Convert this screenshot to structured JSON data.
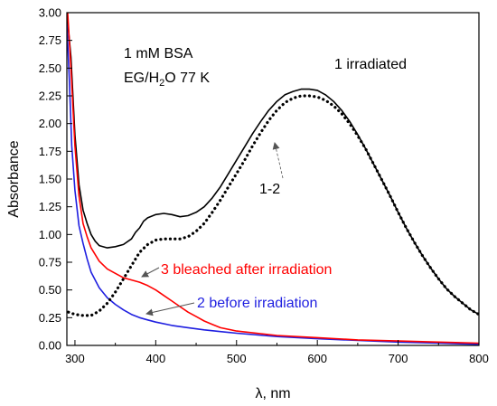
{
  "chart_data": {
    "type": "line",
    "xlabel_symbol": "λ",
    "xlabel_unit": ", nm",
    "ylabel": "Absorbance",
    "xlim": [
      290,
      800
    ],
    "ylim": [
      0,
      3.0
    ],
    "x_ticks": [
      300,
      400,
      500,
      600,
      700,
      800
    ],
    "y_ticks": [
      "0.00",
      "0.25",
      "0.50",
      "0.75",
      "1.00",
      "1.25",
      "1.50",
      "1.75",
      "2.00",
      "2.25",
      "2.50",
      "2.75",
      "3.00"
    ],
    "grid": false,
    "annotations": {
      "sample_line1": "1 mM BSA",
      "sample_line2_pre": "EG/H",
      "sample_line2_sub": "2",
      "sample_line2_post": "O 77 K",
      "curve1": "1 irradiated",
      "curve2": "2 before irradiation",
      "curve3": "3 bleached after irradiation",
      "diff": "1-2"
    },
    "series": [
      {
        "name": "1 irradiated",
        "color": "#000000",
        "style": "solid",
        "points": [
          [
            290,
            3.0
          ],
          [
            295,
            2.6
          ],
          [
            300,
            1.9
          ],
          [
            305,
            1.45
          ],
          [
            310,
            1.22
          ],
          [
            315,
            1.1
          ],
          [
            320,
            1.0
          ],
          [
            325,
            0.94
          ],
          [
            330,
            0.9
          ],
          [
            340,
            0.88
          ],
          [
            350,
            0.89
          ],
          [
            360,
            0.91
          ],
          [
            370,
            0.96
          ],
          [
            375,
            1.02
          ],
          [
            380,
            1.06
          ],
          [
            385,
            1.12
          ],
          [
            390,
            1.15
          ],
          [
            400,
            1.18
          ],
          [
            410,
            1.19
          ],
          [
            420,
            1.18
          ],
          [
            430,
            1.16
          ],
          [
            440,
            1.17
          ],
          [
            450,
            1.2
          ],
          [
            460,
            1.25
          ],
          [
            470,
            1.33
          ],
          [
            480,
            1.43
          ],
          [
            490,
            1.55
          ],
          [
            500,
            1.67
          ],
          [
            510,
            1.79
          ],
          [
            520,
            1.91
          ],
          [
            530,
            2.02
          ],
          [
            540,
            2.12
          ],
          [
            550,
            2.2
          ],
          [
            560,
            2.26
          ],
          [
            570,
            2.29
          ],
          [
            580,
            2.31
          ],
          [
            590,
            2.31
          ],
          [
            600,
            2.3
          ],
          [
            610,
            2.26
          ],
          [
            620,
            2.2
          ],
          [
            630,
            2.12
          ],
          [
            640,
            2.02
          ],
          [
            650,
            1.9
          ],
          [
            660,
            1.77
          ],
          [
            670,
            1.63
          ],
          [
            680,
            1.49
          ],
          [
            690,
            1.35
          ],
          [
            700,
            1.2
          ],
          [
            710,
            1.06
          ],
          [
            720,
            0.93
          ],
          [
            730,
            0.81
          ],
          [
            740,
            0.7
          ],
          [
            750,
            0.6
          ],
          [
            760,
            0.51
          ],
          [
            770,
            0.44
          ],
          [
            780,
            0.38
          ],
          [
            790,
            0.32
          ],
          [
            800,
            0.28
          ]
        ]
      },
      {
        "name": "2 before irradiation",
        "color": "#1f1fe0",
        "style": "solid",
        "points": [
          [
            290,
            2.9
          ],
          [
            293,
            2.4
          ],
          [
            296,
            1.8
          ],
          [
            300,
            1.4
          ],
          [
            305,
            1.08
          ],
          [
            310,
            0.92
          ],
          [
            315,
            0.78
          ],
          [
            320,
            0.66
          ],
          [
            330,
            0.52
          ],
          [
            340,
            0.43
          ],
          [
            350,
            0.37
          ],
          [
            360,
            0.32
          ],
          [
            370,
            0.28
          ],
          [
            380,
            0.25
          ],
          [
            390,
            0.23
          ],
          [
            400,
            0.21
          ],
          [
            420,
            0.18
          ],
          [
            440,
            0.16
          ],
          [
            460,
            0.14
          ],
          [
            480,
            0.125
          ],
          [
            500,
            0.11
          ],
          [
            550,
            0.08
          ],
          [
            600,
            0.06
          ],
          [
            650,
            0.045
          ],
          [
            700,
            0.03
          ],
          [
            750,
            0.02
          ],
          [
            800,
            0.01
          ]
        ]
      },
      {
        "name": "3 bleached after irradiation",
        "color": "#ff0000",
        "style": "solid",
        "points": [
          [
            291,
            3.0
          ],
          [
            295,
            2.5
          ],
          [
            300,
            1.8
          ],
          [
            305,
            1.35
          ],
          [
            310,
            1.1
          ],
          [
            315,
            0.98
          ],
          [
            320,
            0.88
          ],
          [
            330,
            0.76
          ],
          [
            340,
            0.69
          ],
          [
            350,
            0.65
          ],
          [
            360,
            0.61
          ],
          [
            370,
            0.59
          ],
          [
            380,
            0.57
          ],
          [
            390,
            0.54
          ],
          [
            400,
            0.5
          ],
          [
            410,
            0.45
          ],
          [
            420,
            0.4
          ],
          [
            430,
            0.35
          ],
          [
            440,
            0.3
          ],
          [
            450,
            0.26
          ],
          [
            460,
            0.22
          ],
          [
            470,
            0.19
          ],
          [
            480,
            0.16
          ],
          [
            500,
            0.13
          ],
          [
            550,
            0.09
          ],
          [
            600,
            0.07
          ],
          [
            650,
            0.05
          ],
          [
            700,
            0.04
          ],
          [
            750,
            0.03
          ],
          [
            800,
            0.02
          ]
        ]
      },
      {
        "name": "1-2",
        "color": "#000000",
        "style": "dotted",
        "points": [
          [
            292,
            0.3
          ],
          [
            300,
            0.28
          ],
          [
            310,
            0.27
          ],
          [
            320,
            0.27
          ],
          [
            330,
            0.31
          ],
          [
            340,
            0.38
          ],
          [
            350,
            0.48
          ],
          [
            360,
            0.6
          ],
          [
            370,
            0.72
          ],
          [
            380,
            0.84
          ],
          [
            390,
            0.91
          ],
          [
            400,
            0.95
          ],
          [
            410,
            0.96
          ],
          [
            420,
            0.96
          ],
          [
            430,
            0.96
          ],
          [
            440,
            0.98
          ],
          [
            450,
            1.03
          ],
          [
            460,
            1.1
          ],
          [
            470,
            1.2
          ],
          [
            480,
            1.31
          ],
          [
            490,
            1.43
          ],
          [
            500,
            1.55
          ],
          [
            510,
            1.67
          ],
          [
            520,
            1.8
          ],
          [
            530,
            1.92
          ],
          [
            540,
            2.03
          ],
          [
            550,
            2.12
          ],
          [
            560,
            2.19
          ],
          [
            570,
            2.23
          ],
          [
            580,
            2.25
          ],
          [
            590,
            2.25
          ],
          [
            600,
            2.24
          ],
          [
            610,
            2.21
          ],
          [
            620,
            2.16
          ],
          [
            630,
            2.09
          ],
          [
            640,
            2.0
          ],
          [
            650,
            1.89
          ],
          [
            660,
            1.77
          ],
          [
            670,
            1.63
          ],
          [
            680,
            1.49
          ],
          [
            690,
            1.35
          ],
          [
            700,
            1.2
          ],
          [
            710,
            1.06
          ],
          [
            720,
            0.93
          ],
          [
            730,
            0.81
          ],
          [
            740,
            0.7
          ],
          [
            750,
            0.6
          ],
          [
            760,
            0.51
          ],
          [
            770,
            0.44
          ],
          [
            780,
            0.38
          ],
          [
            790,
            0.32
          ],
          [
            800,
            0.28
          ]
        ]
      }
    ]
  }
}
